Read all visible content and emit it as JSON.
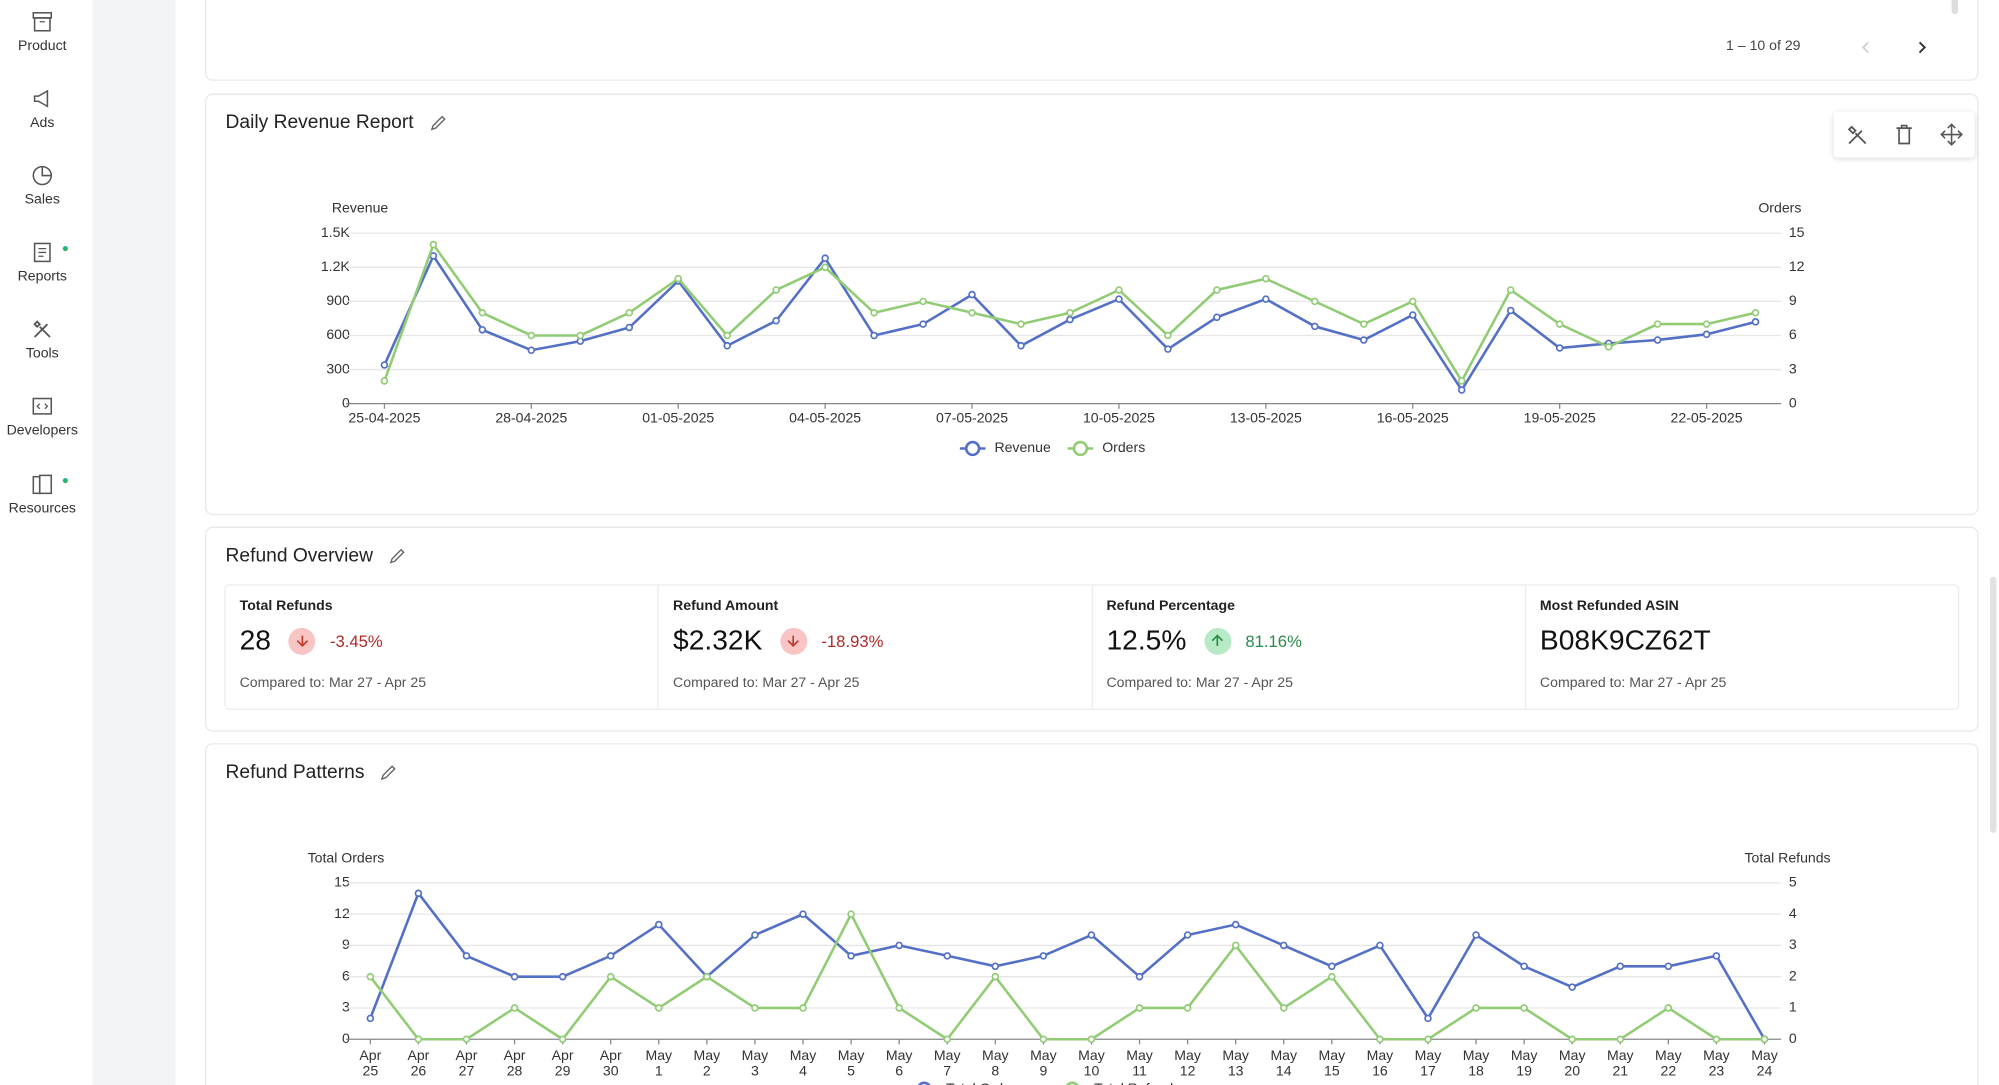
{
  "sidebar": {
    "items": [
      "Product",
      "Ads",
      "Sales",
      "Reports",
      "Tools",
      "Developers",
      "Resources"
    ]
  },
  "pagination": "1 – 10 of 29",
  "refund_overview": {
    "title": "Refund Overview",
    "cards": [
      {
        "title": "Total Refunds",
        "value": "28",
        "change": "-3.45%",
        "trend": "down",
        "compared": "Compared to: Mar 27 - Apr 25"
      },
      {
        "title": "Refund Amount",
        "value": "$2.32K",
        "change": "-18.93%",
        "trend": "down",
        "compared": "Compared to: Mar 27 - Apr 25"
      },
      {
        "title": "Refund Percentage",
        "value": "12.5%",
        "change": "81.16%",
        "trend": "up",
        "compared": "Compared to: Mar 27 - Apr 25"
      },
      {
        "title": "Most Refunded ASIN",
        "value": "B08K9CZ62T",
        "compared": "Compared to: Mar 27 - Apr 25"
      }
    ]
  },
  "chart_data": [
    {
      "type": "line",
      "title": "Daily Revenue Report",
      "y_label": "Revenue",
      "y2_label": "Orders",
      "categories": [
        "25-04-2025",
        null,
        null,
        "28-04-2025",
        null,
        null,
        "01-05-2025",
        null,
        null,
        "04-05-2025",
        null,
        null,
        "07-05-2025",
        null,
        null,
        "10-05-2025",
        null,
        null,
        "13-05-2025",
        null,
        null,
        "16-05-2025",
        null,
        null,
        "19-05-2025",
        null,
        null,
        "22-05-2025",
        null
      ],
      "ylim": [
        0,
        1500
      ],
      "yticks": [
        0,
        300,
        600,
        900,
        {
          "value": 1200,
          "label": "1.2K"
        },
        {
          "value": 1500,
          "label": "1.5K"
        }
      ],
      "y2lim": [
        0,
        15
      ],
      "y2ticks": [
        0,
        3,
        6,
        9,
        12,
        15
      ],
      "grid": true,
      "legend": "bottom",
      "series": [
        {
          "name": "Revenue",
          "color": "#5470c6",
          "values": [
            340,
            1300,
            650,
            470,
            550,
            670,
            1080,
            510,
            730,
            1280,
            600,
            700,
            960,
            510,
            740,
            920,
            480,
            760,
            920,
            680,
            560,
            780,
            120,
            820,
            490,
            530,
            560,
            610,
            720
          ]
        },
        {
          "name": "Orders",
          "color": "#91cc75",
          "axis": "y2",
          "values": [
            2,
            14,
            8,
            6,
            6,
            8,
            11,
            6,
            10,
            12,
            8,
            9,
            8,
            7,
            8,
            10,
            6,
            10,
            11,
            9,
            7,
            9,
            2,
            10,
            7,
            5,
            7,
            7,
            8
          ]
        }
      ]
    },
    {
      "type": "line",
      "title": "Refund Patterns",
      "y_label": "Total Orders",
      "y2_label": "Total Refunds",
      "categories": [
        "Apr 25",
        "Apr 26",
        "Apr 27",
        "Apr 28",
        "Apr 29",
        "Apr 30",
        "May 1",
        "May 2",
        "May 3",
        "May 4",
        "May 5",
        "May 6",
        "May 7",
        "May 8",
        "May 9",
        "May 10",
        "May 11",
        "May 12",
        "May 13",
        "May 14",
        "May 15",
        "May 16",
        "May 17",
        "May 18",
        "May 19",
        "May 20",
        "May 21",
        "May 22",
        "May 23",
        "May 24"
      ],
      "ylim": [
        0,
        15
      ],
      "yticks": [
        0,
        3,
        6,
        9,
        12,
        15
      ],
      "y2lim": [
        0,
        5
      ],
      "y2ticks": [
        0,
        1,
        2,
        3,
        4,
        5
      ],
      "grid": true,
      "legend": "bottom",
      "series": [
        {
          "name": "Total Orders",
          "color": "#5470c6",
          "values": [
            2,
            14,
            8,
            6,
            6,
            8,
            11,
            6,
            10,
            12,
            8,
            9,
            8,
            7,
            8,
            10,
            6,
            10,
            11,
            9,
            7,
            9,
            2,
            10,
            7,
            5,
            7,
            7,
            8,
            0
          ]
        },
        {
          "name": "Total Refunds",
          "color": "#91cc75",
          "axis": "y2",
          "values": [
            2,
            0,
            0,
            1,
            0,
            2,
            1,
            2,
            1,
            1,
            4,
            1,
            0,
            2,
            0,
            0,
            1,
            1,
            3,
            1,
            2,
            0,
            0,
            1,
            1,
            0,
            0,
            1,
            0,
            0
          ]
        }
      ]
    }
  ]
}
